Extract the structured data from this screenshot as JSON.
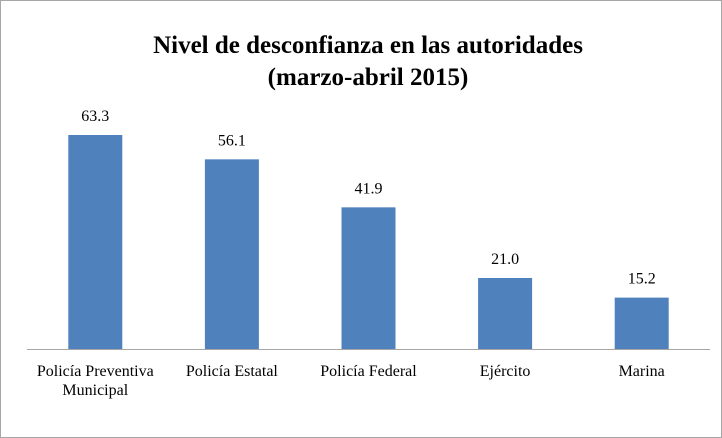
{
  "chart_data": {
    "type": "bar",
    "title": [
      "Nivel de desconfianza en las autoridades",
      "(marzo-abril 2015)"
    ],
    "categories": [
      "Policía Preventiva Municipal",
      "Policía Estatal",
      "Policía Federal",
      "Ejército",
      "Marina"
    ],
    "values": [
      63.3,
      56.1,
      41.9,
      21.0,
      15.2
    ],
    "value_labels": [
      "63.3",
      "56.1",
      "41.9",
      "21.0",
      "15.2"
    ],
    "color": "#4f81bd"
  }
}
